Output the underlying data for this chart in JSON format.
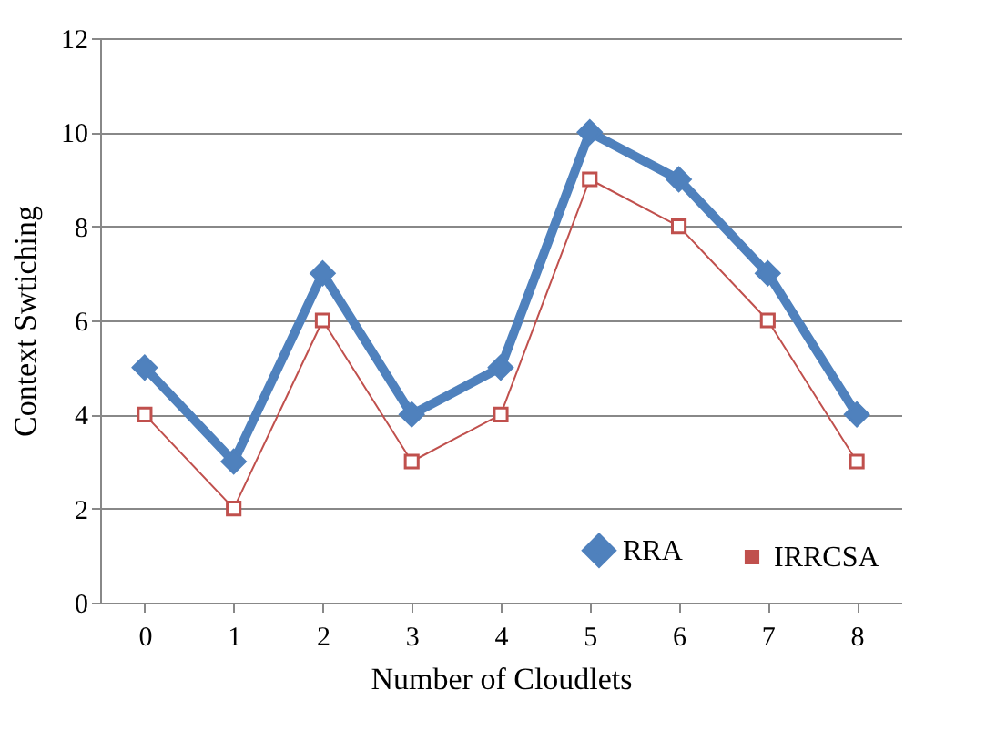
{
  "chart_data": {
    "type": "line",
    "xlabel": "Number of Cloudlets",
    "ylabel": "Context Swtiching",
    "categories": [
      "0",
      "1",
      "2",
      "3",
      "4",
      "5",
      "6",
      "7",
      "8"
    ],
    "series": [
      {
        "name": "RRA",
        "color": "#4f81bd",
        "marker": "diamond",
        "values": [
          5,
          3,
          7,
          4,
          5,
          10,
          9,
          7,
          4
        ]
      },
      {
        "name": "IRRCSA",
        "color": "#c0504d",
        "marker": "square",
        "values": [
          4,
          2,
          6,
          3,
          4,
          9,
          8,
          6,
          3
        ]
      }
    ],
    "ylim": [
      0,
      12
    ],
    "yticks": [
      0,
      2,
      4,
      6,
      8,
      10,
      12
    ],
    "grid": "y",
    "legend": "bottom right",
    "line_style": "solid"
  }
}
